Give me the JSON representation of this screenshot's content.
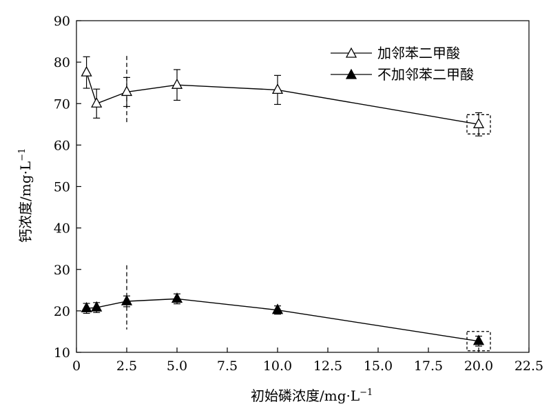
{
  "chart_data": {
    "type": "line",
    "xlabel": "初始磷浓度/mg·L",
    "xlabel_sup": "−1",
    "ylabel": "钙浓度/mg·L",
    "ylabel_sup": "−1",
    "xlim": [
      0,
      22.5
    ],
    "ylim": [
      10,
      90
    ],
    "xticks": [
      "0",
      "2.5",
      "5.0",
      "7.5",
      "10.0",
      "12.5",
      "15.0",
      "17.5",
      "20.0",
      "22.5"
    ],
    "yticks": [
      "10",
      "20",
      "30",
      "40",
      "50",
      "60",
      "70",
      "80",
      "90"
    ],
    "legend_position": "top-right",
    "series": [
      {
        "name": "加邻苯二甲酸",
        "marker": "open-triangle",
        "color": "#000000",
        "x": [
          0.5,
          1.0,
          2.5,
          5.0,
          10.0,
          20.0
        ],
        "y": [
          77.5,
          70.0,
          72.8,
          74.5,
          73.3,
          65.0
        ],
        "error": [
          3.8,
          3.5,
          3.5,
          3.7,
          3.5,
          2.8
        ]
      },
      {
        "name": "不加邻苯二甲酸",
        "marker": "filled-triangle",
        "color": "#000000",
        "x": [
          0.5,
          1.0,
          2.5,
          5.0,
          10.0,
          20.0
        ],
        "y": [
          20.6,
          20.8,
          22.3,
          22.9,
          20.2,
          12.7
        ],
        "error": [
          1.2,
          1.2,
          1.3,
          1.2,
          1.0,
          1.2
        ]
      }
    ],
    "vertical_markers": [
      {
        "x": 2.5,
        "y_range": [
          65.5,
          81.5
        ],
        "style": "dashed"
      },
      {
        "x": 2.5,
        "y_range": [
          15.5,
          31.0
        ],
        "style": "dashed"
      }
    ],
    "highlight_boxes": [
      {
        "x": 20.0,
        "y": 65.0,
        "style": "dashed"
      },
      {
        "x": 20.0,
        "y": 12.7,
        "style": "dashed"
      }
    ]
  }
}
